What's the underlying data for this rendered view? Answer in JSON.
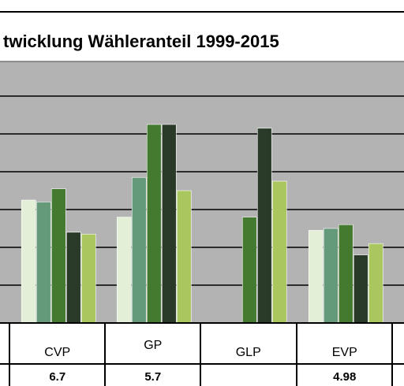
{
  "chart_data": {
    "type": "bar",
    "title": "twicklung Wähleranteil 1999-2015",
    "categories": [
      "",
      "CVP",
      "GP",
      "GLP",
      "EVP",
      ""
    ],
    "table_values": [
      "",
      "6.7",
      "5.7",
      "",
      "4.98",
      ""
    ],
    "ylim": [
      0,
      12
    ],
    "grid": true,
    "colors": [
      "#e3efd6",
      "#64997a",
      "#447a2f",
      "#2a3a28",
      "#aac65f"
    ],
    "series": [
      {
        "values": [
          null,
          6.5,
          5.6,
          null,
          4.9,
          null
        ]
      },
      {
        "values": [
          null,
          6.4,
          7.7,
          null,
          5.0,
          null
        ]
      },
      {
        "values": [
          null,
          7.1,
          10.5,
          5.6,
          5.2,
          null
        ]
      },
      {
        "values": [
          null,
          4.8,
          10.5,
          10.3,
          3.6,
          0.5
        ]
      },
      {
        "values": [
          null,
          4.7,
          7.0,
          7.5,
          4.2,
          null
        ]
      }
    ]
  }
}
